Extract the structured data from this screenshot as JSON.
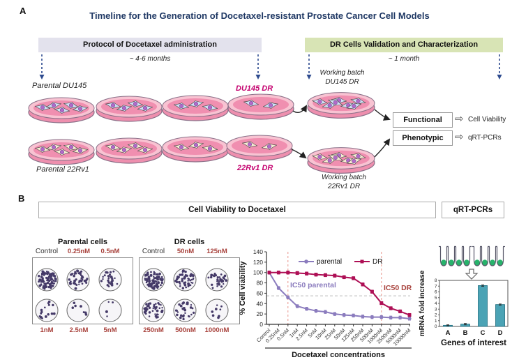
{
  "panelA": {
    "label": "A",
    "title": "Timeline for the Generation of Docetaxel-resistant Prostate Cancer Cell Models",
    "phases": [
      {
        "title": "Protocol of Docetaxel administration",
        "duration": "~ 4-6 months"
      },
      {
        "title": "DR Cells Validation and Characterization",
        "duration": "~ 1 month"
      }
    ],
    "cell_lines": [
      {
        "parental": "Parental DU145",
        "resistant": "DU145 DR",
        "working": "Working batch\nDU145 DR"
      },
      {
        "parental": "Parental 22Rv1",
        "resistant": "22Rv1 DR",
        "working": "Working batch\n22Rv1 DR"
      }
    ],
    "outputs": [
      {
        "category": "Functional",
        "assay": "Cell Viability"
      },
      {
        "category": "Phenotypic",
        "assay": "qRT-PCRs"
      }
    ]
  },
  "panelB": {
    "label": "B",
    "section_titles": {
      "viability": "Cell Viability to Docetaxel",
      "qrtpcr": "qRT-PCRs"
    },
    "colony_assays": [
      {
        "title": "Parental cells",
        "top_labels": [
          "Control",
          "0.25nM",
          "0.5nM"
        ],
        "bottom_labels": [
          "1nM",
          "2.5nM",
          "5nM"
        ],
        "colony_counts": [
          80,
          44,
          27,
          16,
          7,
          4
        ]
      },
      {
        "title": "DR cells",
        "top_labels": [
          "Control",
          "50nM",
          "125nM"
        ],
        "bottom_labels": [
          "250nM",
          "500nM",
          "1000nM"
        ],
        "colony_counts": [
          80,
          52,
          36,
          40,
          28,
          8
        ]
      }
    ]
  },
  "chart_data": [
    {
      "type": "line",
      "x": [
        "Control",
        "0.25nM",
        "0.5nM",
        "1nM",
        "2.5nM",
        "5nM",
        "10nM",
        "25nM",
        "50nM",
        "125nM",
        "250nM",
        "500nM",
        "1000nM",
        "2500nM",
        "5000nM",
        "10000nM"
      ],
      "series": [
        {
          "name": "parental",
          "marker": "circle",
          "color": "#8b7cbe",
          "values": [
            100,
            70,
            52,
            35,
            30,
            26,
            24,
            20,
            18,
            17,
            15,
            14,
            14,
            13,
            13,
            11
          ]
        },
        {
          "name": "DR",
          "marker": "square",
          "color": "#ae0f55",
          "values": [
            100,
            100,
            100,
            99,
            98,
            96,
            95,
            94,
            91,
            89,
            77,
            63,
            41,
            31,
            25,
            18
          ]
        }
      ],
      "error": 3,
      "ylabel": "% Cell viability",
      "xlabel": "Docetaxel concentrations",
      "ylim": [
        0,
        140
      ],
      "yticks": [
        0,
        20,
        40,
        60,
        80,
        100,
        120,
        140
      ],
      "legend_position": "top-inside",
      "grid": false,
      "hline": 55,
      "vline_x_labels": [
        "0.5nM",
        "1000nM"
      ],
      "annotations": [
        {
          "text": "IC50 parental",
          "color": "#8b7cbe"
        },
        {
          "text": "IC50 DR",
          "color": "#a8423c"
        }
      ]
    },
    {
      "type": "bar",
      "categories": [
        "A",
        "B",
        "C",
        "D"
      ],
      "values": [
        0.2,
        0.4,
        7.1,
        3.8
      ],
      "errors": [
        0.08,
        0.12,
        0.12,
        0.1
      ],
      "ylabel": "mRNA fold increase",
      "xlabel": "Genes of interest",
      "ylim": [
        0,
        8
      ],
      "yticks": [
        0,
        1,
        2,
        3,
        4,
        5,
        6,
        7,
        8
      ],
      "bar_color": "#4ba3b5",
      "grid": false,
      "legend_position": "none"
    }
  ],
  "colors": {
    "title_navy": "#1f3864",
    "resistant_label_magenta": "#c4006e",
    "concentration_label_red": "#a8423c",
    "phase_left_bg": "#e3e2ed",
    "phase_right_bg": "#d8e4b5",
    "parental_series": "#8b7cbe",
    "dr_series": "#ae0f55",
    "bar_teal": "#4ba3b5",
    "dashed_arrow_navy": "#2e4b8f",
    "tube_green": "#27b36b"
  }
}
